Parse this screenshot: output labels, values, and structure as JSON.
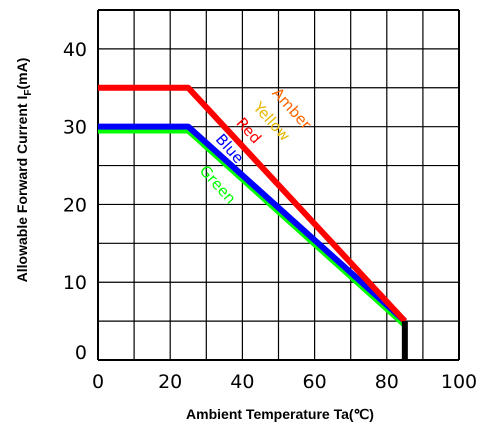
{
  "chart_data": {
    "type": "line",
    "title": "",
    "xlabel": "Ambient Temperature Ta(℃)",
    "ylabel_main": "Allowable Forward Current I",
    "ylabel_sub": "F",
    "ylabel_unit": "(mA)",
    "xlim": [
      0,
      100
    ],
    "ylim": [
      0,
      45
    ],
    "x_ticks": [
      0,
      20,
      40,
      60,
      80,
      100
    ],
    "y_ticks": [
      0,
      10,
      20,
      30,
      40
    ],
    "grid": true,
    "series": [
      {
        "name": "Amber",
        "color": "#ff6600",
        "labelled_only": true
      },
      {
        "name": "Yellow",
        "color": "#e6b800",
        "labelled_only": true
      },
      {
        "name": "Red",
        "color": "#ff0000",
        "x": [
          0,
          25,
          85
        ],
        "y": [
          35,
          35,
          5
        ]
      },
      {
        "name": "Blue",
        "color": "#0000ff",
        "x": [
          0,
          25,
          85
        ],
        "y": [
          30,
          30,
          5
        ]
      },
      {
        "name": "Green",
        "color": "#00ff00",
        "x": [
          0,
          25,
          85
        ],
        "y": [
          29.5,
          29.5,
          4.5
        ]
      }
    ],
    "drop_line": {
      "x": 85,
      "y_from": 5,
      "y_to": 0,
      "color": "#000000"
    }
  },
  "labels": {
    "Amber": "Amber",
    "Yellow": "Yellow",
    "Red": "Red",
    "Blue": "Blue",
    "Green": "Green"
  }
}
